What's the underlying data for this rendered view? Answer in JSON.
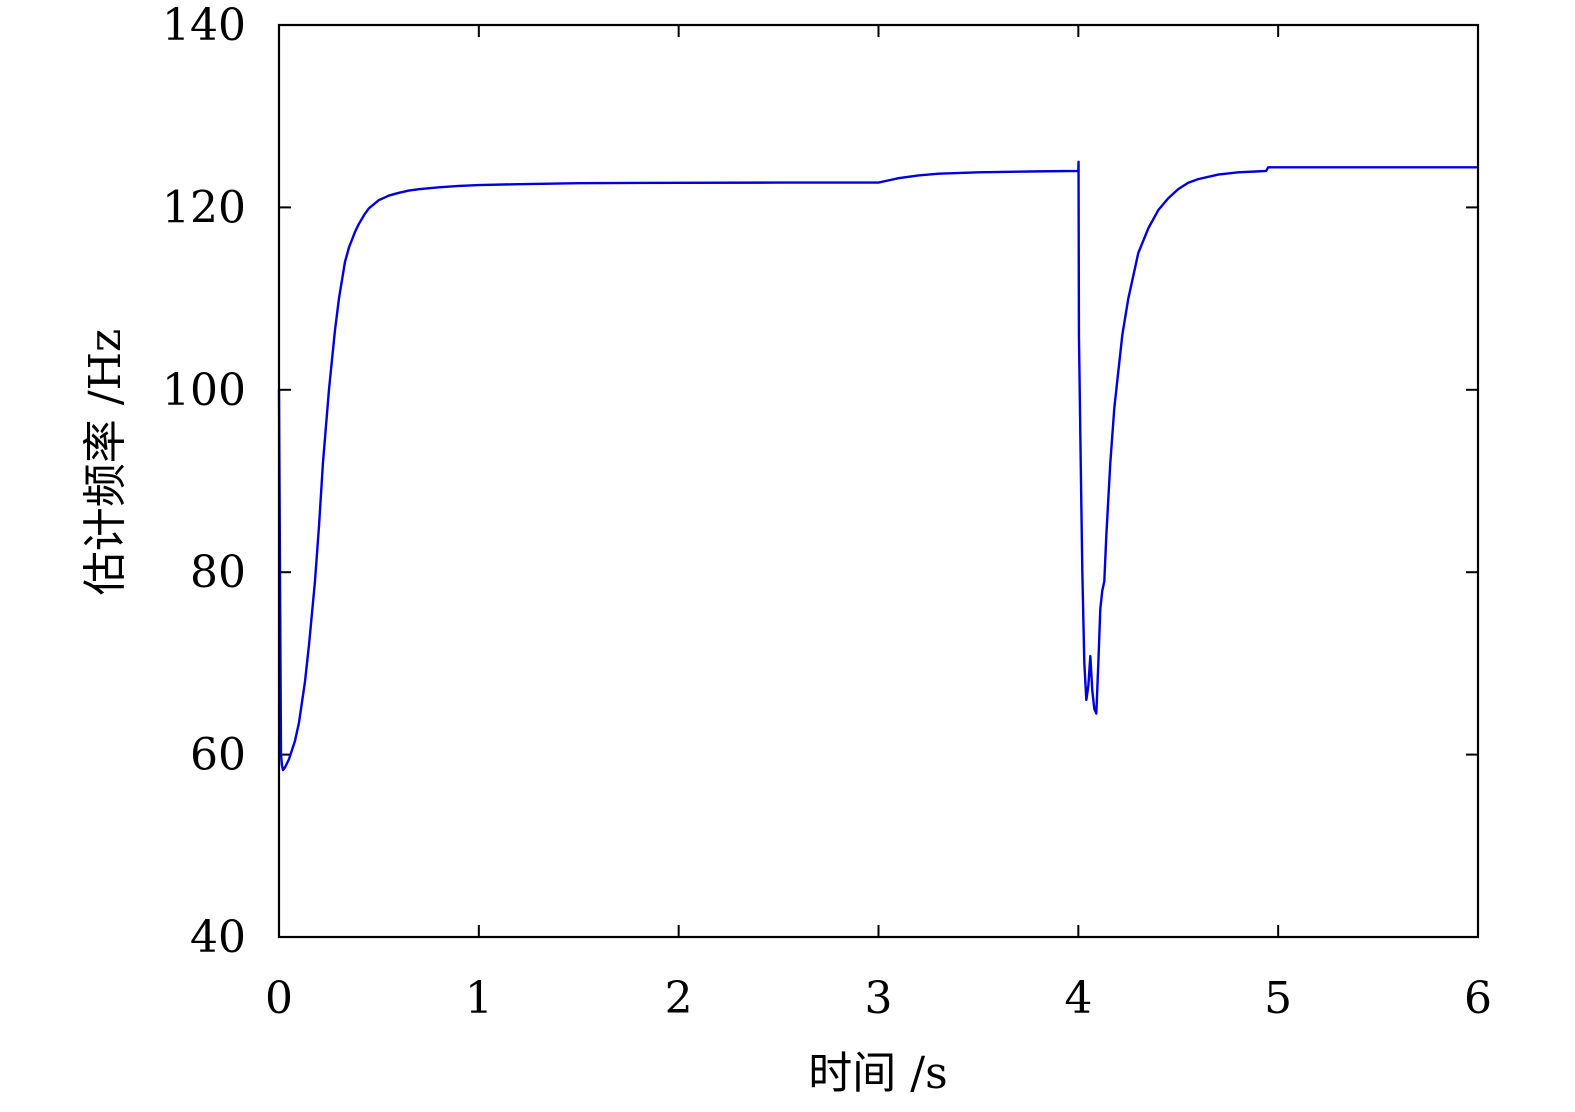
{
  "chart_data": {
    "type": "line",
    "title": "",
    "xlabel": "时间 /s",
    "ylabel": "估计频率 /Hz",
    "xlim": [
      0,
      6
    ],
    "ylim": [
      40,
      140
    ],
    "xticks": [
      "0",
      "1",
      "2",
      "3",
      "4",
      "5",
      "6"
    ],
    "yticks": [
      "40",
      "60",
      "80",
      "100",
      "120",
      "140"
    ],
    "grid": false,
    "legend": "none",
    "series": [
      {
        "color": "#0000dd",
        "x": [
          0,
          0.005,
          0.01,
          0.015,
          0.02,
          0.03,
          0.05,
          0.08,
          0.1,
          0.13,
          0.15,
          0.18,
          0.2,
          0.22,
          0.25,
          0.28,
          0.3,
          0.33,
          0.35,
          0.38,
          0.4,
          0.43,
          0.45,
          0.5,
          0.55,
          0.6,
          0.65,
          0.7,
          0.8,
          0.9,
          1.0,
          1.2,
          1.5,
          2.0,
          2.5,
          3.0,
          3.1,
          3.2,
          3.3,
          3.5,
          3.8,
          4.0,
          4.001,
          4.003,
          4.005,
          4.01,
          4.02,
          4.03,
          4.04,
          4.05,
          4.06,
          4.07,
          4.08,
          4.09,
          4.1,
          4.11,
          4.12,
          4.13,
          4.14,
          4.15,
          4.16,
          4.18,
          4.2,
          4.22,
          4.25,
          4.28,
          4.3,
          4.35,
          4.4,
          4.45,
          4.5,
          4.55,
          4.6,
          4.7,
          4.8,
          4.9,
          4.94,
          4.95,
          5.0,
          5.5,
          6.0
        ],
        "y": [
          100,
          80,
          60,
          58.8,
          58.3,
          58.6,
          59.5,
          61.5,
          63.5,
          68,
          72,
          79,
          85,
          92,
          100,
          106.5,
          110,
          114,
          115.6,
          117.3,
          118.2,
          119.3,
          119.9,
          120.8,
          121.3,
          121.6,
          121.85,
          122.0,
          122.2,
          122.35,
          122.45,
          122.55,
          122.65,
          122.7,
          122.72,
          122.72,
          123.2,
          123.5,
          123.7,
          123.85,
          123.95,
          124.0,
          125.0,
          106,
          103,
          95,
          80,
          70,
          66,
          67.5,
          70.8,
          67,
          65,
          64.5,
          70,
          76,
          78,
          79,
          84,
          88,
          92,
          98,
          102,
          106,
          110,
          113,
          115,
          117.7,
          119.7,
          121.0,
          122.0,
          122.7,
          123.1,
          123.6,
          123.85,
          123.95,
          124.0,
          124.4,
          124.4,
          124.4,
          124.4
        ]
      }
    ]
  }
}
